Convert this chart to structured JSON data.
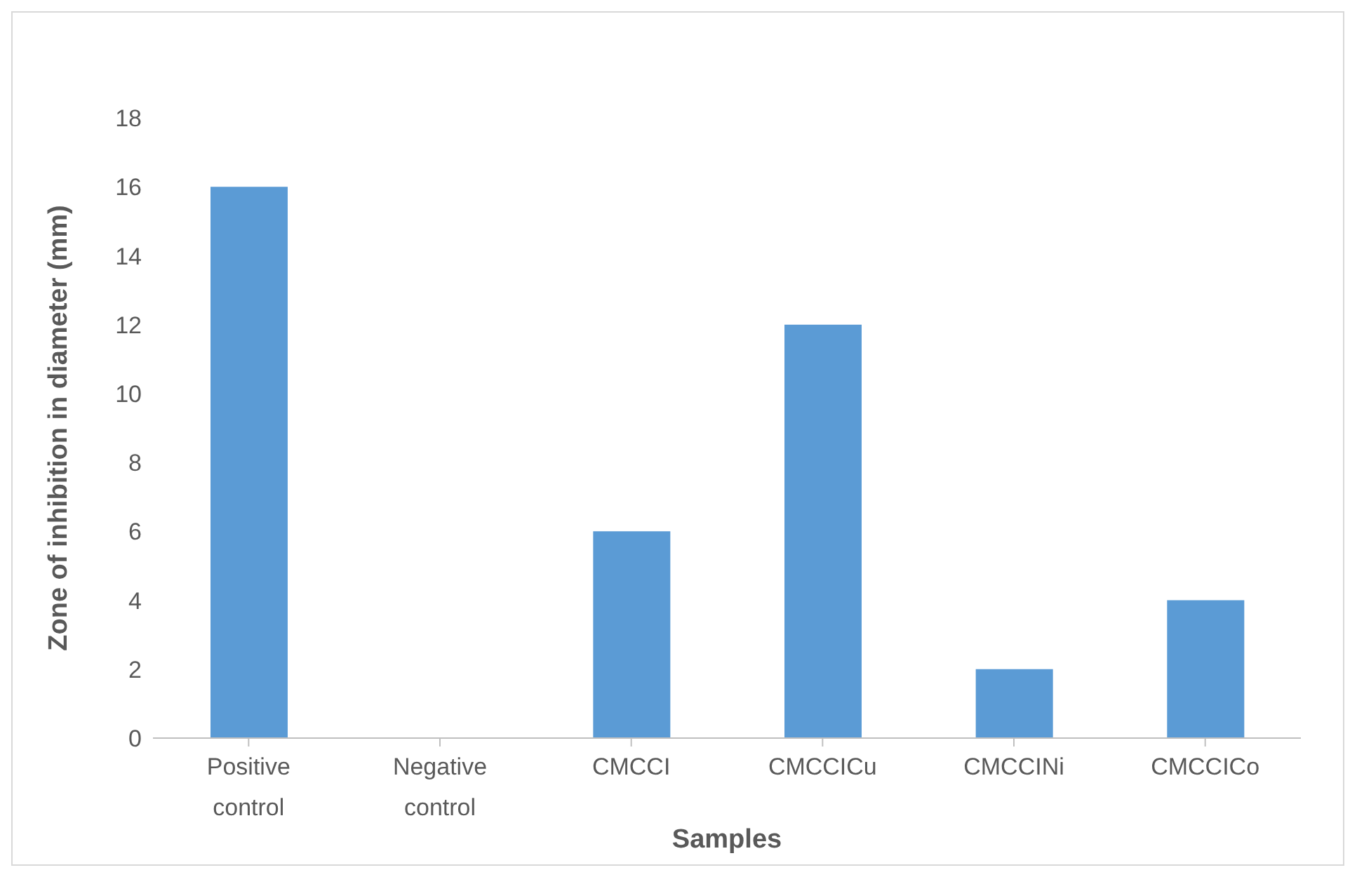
{
  "chart_data": {
    "type": "bar",
    "xlabel": "Samples",
    "ylabel": "Zone of inhibition in diameter (mm)",
    "categories": [
      "Positive control",
      "Negative control",
      "CMCCI",
      "CMCCICu",
      "CMCCINi",
      "CMCCICo"
    ],
    "values": [
      16,
      0,
      6,
      12,
      2,
      4
    ],
    "color": "#5b9bd5",
    "ylim": [
      0,
      18
    ],
    "yticks": [
      0,
      2,
      4,
      6,
      8,
      10,
      12,
      14,
      16,
      18
    ],
    "grid": false,
    "legend": false
  }
}
